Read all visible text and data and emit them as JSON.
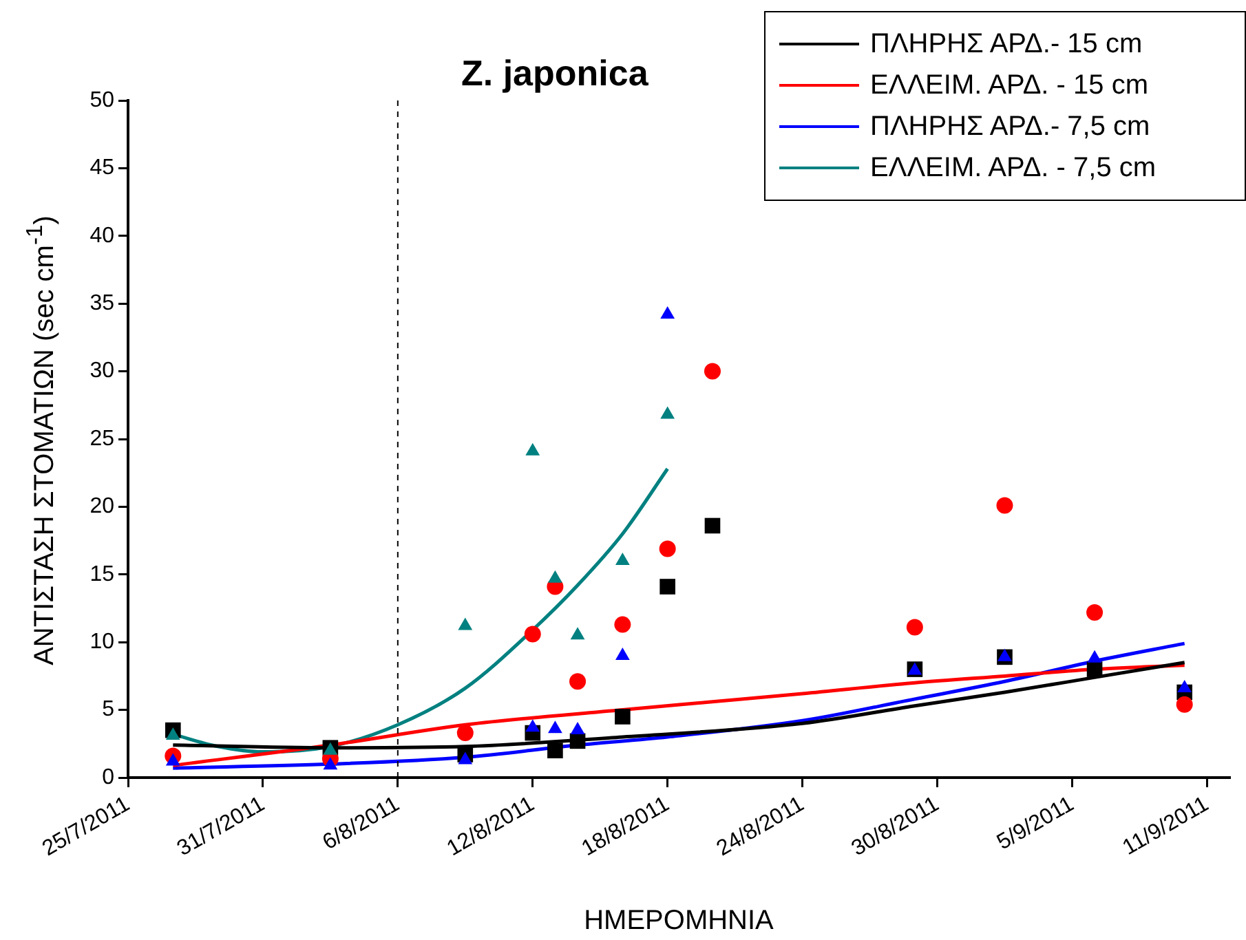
{
  "chart_data": {
    "type": "scatter",
    "title": "Z. japonica",
    "xlabel": "ΗΜΕΡΟΜΗΝΙΑ",
    "ylabel": "ΑΝΤΙΣΤΑΣΗ ΣΤΟΜΑΤΙΩΝ (sec  cm$^{-1}$)",
    "x": [
      "2011-07-27",
      "2011-08-03",
      "2011-08-09",
      "2011-08-12",
      "2011-08-13",
      "2011-08-14",
      "2011-08-16",
      "2011-08-18",
      "2011-08-20",
      "2011-08-29",
      "2011-09-02",
      "2011-09-06",
      "2011-09-10"
    ],
    "series": [
      {
        "type": "scatter",
        "marker": "square",
        "color": "#000000",
        "values": [
          3.5,
          2.2,
          1.7,
          3.3,
          2.0,
          2.7,
          4.5,
          14.1,
          18.6,
          8.0,
          8.9,
          8.0,
          6.3
        ]
      },
      {
        "type": "scatter",
        "marker": "circle",
        "color": "#ff0000",
        "values": [
          1.6,
          1.4,
          3.3,
          10.6,
          14.1,
          7.1,
          11.3,
          16.9,
          30.0,
          11.1,
          20.1,
          12.2,
          5.4
        ]
      },
      {
        "type": "scatter",
        "marker": "triangle",
        "color": "#0000ff",
        "values": [
          1.2,
          0.9,
          1.3,
          3.7,
          3.6,
          3.5,
          9.0,
          34.2,
          null,
          7.9,
          8.9,
          8.8,
          6.6
        ]
      },
      {
        "type": "scatter",
        "marker": "triangle",
        "color": "#008080",
        "x": [
          "2011-07-27",
          "2011-08-03",
          "2011-08-09",
          "2011-08-12",
          "2011-08-13",
          "2011-08-14",
          "2011-08-16",
          "2011-08-18"
        ],
        "values": [
          3.1,
          2.0,
          11.2,
          24.1,
          14.7,
          10.5,
          16.0,
          26.8
        ]
      },
      {
        "type": "line",
        "name": "ΠΛΗΡΗΣ ΑΡΔ.- 15 cm",
        "color": "#000000",
        "marker": "none",
        "x": [
          "2011-07-27",
          "2011-08-03",
          "2011-08-09",
          "2011-08-16",
          "2011-08-24",
          "2011-08-29",
          "2011-09-02",
          "2011-09-06",
          "2011-09-10"
        ],
        "values": [
          2.4,
          2.2,
          2.3,
          3.0,
          4.0,
          5.3,
          6.3,
          7.4,
          8.5
        ]
      },
      {
        "type": "line",
        "name": "ΕΛΛΕΙΜ. ΑΡΔ. - 15 cm",
        "color": "#ff0000",
        "marker": "none",
        "x": [
          "2011-07-27",
          "2011-08-03",
          "2011-08-09",
          "2011-08-16",
          "2011-08-20",
          "2011-08-24",
          "2011-08-29",
          "2011-09-02",
          "2011-09-06",
          "2011-09-10"
        ],
        "values": [
          0.9,
          2.4,
          3.9,
          5.0,
          5.6,
          6.2,
          7.0,
          7.5,
          8.0,
          8.3
        ]
      },
      {
        "type": "line",
        "name": "ΠΛΗΡΗΣ ΑΡΔ.- 7,5 cm",
        "color": "#0000ff",
        "marker": "none",
        "x": [
          "2011-07-27",
          "2011-08-03",
          "2011-08-09",
          "2011-08-14",
          "2011-08-18",
          "2011-08-24",
          "2011-08-29",
          "2011-09-02",
          "2011-09-06",
          "2011-09-10"
        ],
        "values": [
          0.7,
          1.0,
          1.5,
          2.4,
          3.0,
          4.2,
          5.8,
          7.1,
          8.6,
          9.9
        ]
      },
      {
        "type": "line",
        "name": "ΕΛΛΕΙΜ. ΑΡΔ. - 7,5 cm",
        "color": "#008080",
        "marker": "none",
        "x": [
          "2011-07-27",
          "2011-07-29",
          "2011-07-31",
          "2011-08-03",
          "2011-08-06",
          "2011-08-09",
          "2011-08-12",
          "2011-08-14",
          "2011-08-16",
          "2011-08-18"
        ],
        "values": [
          3.2,
          2.3,
          1.9,
          2.3,
          3.9,
          6.6,
          10.9,
          14.2,
          18.0,
          22.8
        ]
      }
    ],
    "xlim": [
      "2011-07-25",
      "2011-09-12"
    ],
    "xticks": [
      {
        "value": "2011-07-25",
        "label": "25/7/2011"
      },
      {
        "value": "2011-07-31",
        "label": "31/7/2011"
      },
      {
        "value": "2011-08-06",
        "label": "6/8/2011"
      },
      {
        "value": "2011-08-12",
        "label": "12/8/2011"
      },
      {
        "value": "2011-08-18",
        "label": "18/8/2011"
      },
      {
        "value": "2011-08-24",
        "label": "24/8/2011"
      },
      {
        "value": "2011-08-30",
        "label": "30/8/2011"
      },
      {
        "value": "2011-09-05",
        "label": "5/9/2011"
      },
      {
        "value": "2011-09-11",
        "label": "11/9/2011"
      }
    ],
    "ylim": [
      0,
      50
    ],
    "yticks": [
      0,
      5,
      10,
      15,
      20,
      25,
      30,
      35,
      40,
      45,
      50
    ],
    "ref_lines": [
      {
        "axis": "x",
        "value": "2011-08-06",
        "color": "#000000",
        "line_style": "dashed"
      }
    ],
    "legend": "top right"
  }
}
